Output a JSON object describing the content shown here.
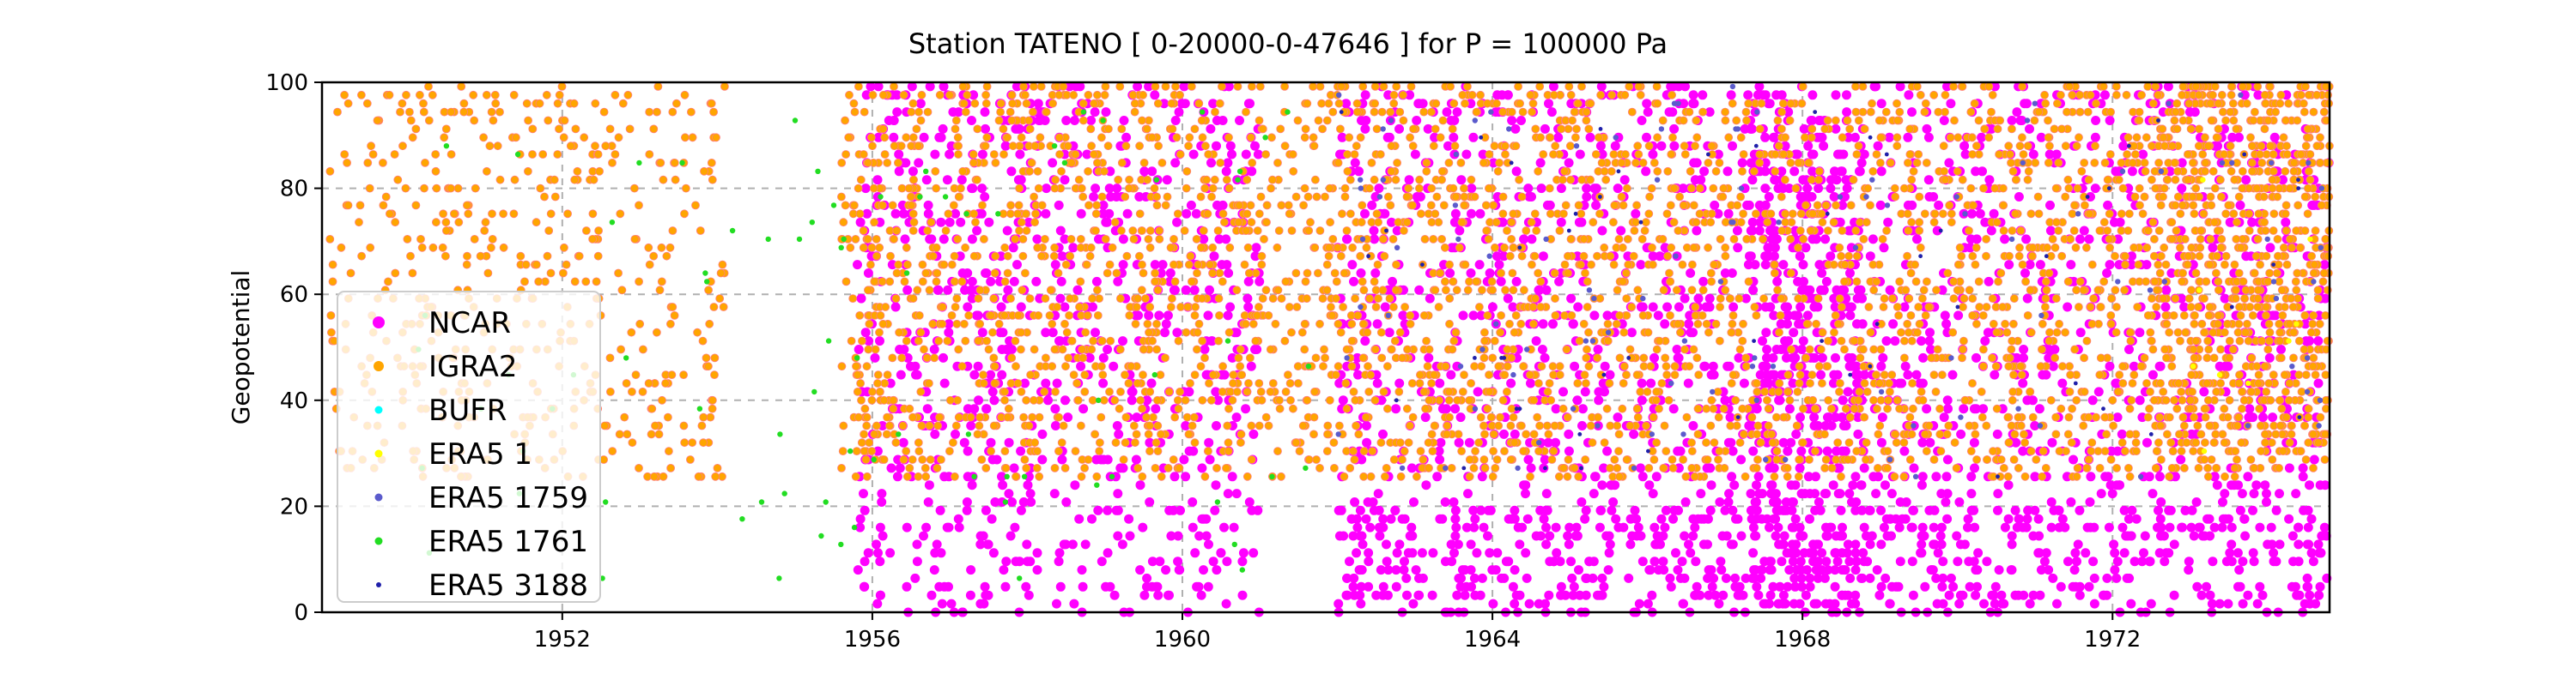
{
  "chart_data": {
    "type": "scatter",
    "title": "Station  TATENO [ 0-20000-0-47646 ]  for P = 100000 Pa",
    "xlabel": "",
    "ylabel": "Geopotential",
    "xlim": [
      1948.9,
      1974.8
    ],
    "ylim": [
      0,
      100
    ],
    "xticks": [
      1952,
      1956,
      1960,
      1964,
      1968,
      1972
    ],
    "yticks": [
      0,
      20,
      40,
      60,
      80,
      100
    ],
    "grid": true,
    "legend_position": "center-left",
    "series": [
      {
        "name": "NCAR",
        "color": "#ff00ff",
        "marker_size": "large",
        "regions": [
          {
            "x": [
              1955.8,
              1961.0
            ],
            "y": [
              0,
              100
            ],
            "density": 1.4
          },
          {
            "x": [
              1962.0,
              1974.8
            ],
            "y": [
              20,
              100
            ],
            "density": 1.0
          },
          {
            "x": [
              1962.0,
              1974.8
            ],
            "y": [
              0,
              20
            ],
            "density": 0.5
          },
          {
            "x": [
              1967.3,
              1968.8
            ],
            "y": [
              0,
              100
            ],
            "density": 2.2
          }
        ]
      },
      {
        "name": "IGRA2",
        "color": "#ffa500",
        "marker_size": "medium",
        "regions": [
          {
            "x": [
              1949.0,
              1954.1
            ],
            "y": [
              25,
              100
            ],
            "density": 0.9
          },
          {
            "x": [
              1955.6,
              1974.8
            ],
            "y": [
              25,
              100
            ],
            "density": 1.6
          },
          {
            "x": [
              1972.5,
              1974.8
            ],
            "y": [
              30,
              100
            ],
            "density": 2.0
          }
        ]
      },
      {
        "name": "BUFR",
        "color": "#00ffff",
        "marker_size": "small",
        "regions": []
      },
      {
        "name": "ERA5 1",
        "color": "#ffff00",
        "marker_size": "small",
        "regions": [
          {
            "x": [
              1973.0,
              1974.6
            ],
            "y": [
              30,
              90
            ],
            "density": 0.05
          }
        ]
      },
      {
        "name": "ERA5 1759",
        "color": "#5b5bcc",
        "marker_size": "small",
        "regions": [
          {
            "x": [
              1962.0,
              1974.8
            ],
            "y": [
              25,
              100
            ],
            "density": 0.08
          }
        ]
      },
      {
        "name": "ERA5 1761",
        "color": "#22dd22",
        "marker_size": "small",
        "regions": [
          {
            "x": [
              1950.0,
              1962.0
            ],
            "y": [
              5,
              95
            ],
            "density": 0.06
          }
        ]
      },
      {
        "name": "ERA5 3188",
        "color": "#2020aa",
        "marker_size": "tiny",
        "regions": [
          {
            "x": [
              1962.0,
              1974.8
            ],
            "y": [
              25,
              95
            ],
            "density": 0.04
          }
        ]
      }
    ]
  }
}
